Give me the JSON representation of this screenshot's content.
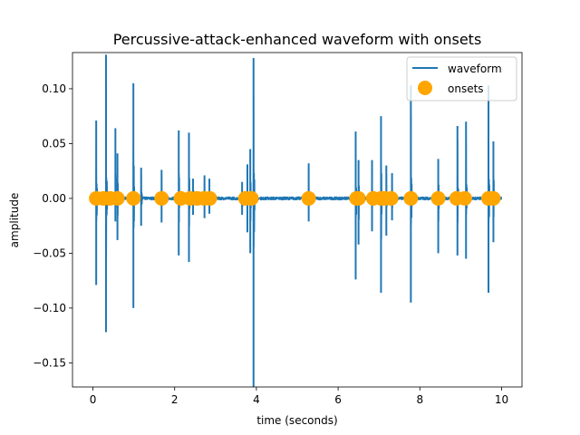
{
  "chart_data": {
    "type": "line",
    "title": "Percussive-attack-enhanced waveform with onsets",
    "xlabel": "time (seconds)",
    "ylabel": "amplitude",
    "xlim": [
      -0.5,
      10.5
    ],
    "ylim": [
      -0.172,
      0.133
    ],
    "xticks": [
      0,
      2,
      4,
      6,
      8,
      10
    ],
    "yticks": [
      -0.15,
      -0.1,
      -0.05,
      0.0,
      0.05,
      0.1
    ],
    "ytick_labels": [
      "−0.15",
      "−0.10",
      "−0.05",
      "0.00",
      "0.05",
      "0.10"
    ],
    "grid": false,
    "legend_position": "top-right",
    "waveform": {
      "name": "waveform",
      "color": "#1f77b4",
      "duration": 10.0,
      "transients": [
        {
          "t": 0.08,
          "pos": 0.071,
          "neg": -0.079
        },
        {
          "t": 0.32,
          "pos": 0.131,
          "neg": -0.122
        },
        {
          "t": 0.55,
          "pos": 0.064,
          "neg": -0.021
        },
        {
          "t": 0.6,
          "pos": 0.041,
          "neg": -0.038
        },
        {
          "t": 0.99,
          "pos": 0.105,
          "neg": -0.1
        },
        {
          "t": 1.18,
          "pos": 0.028,
          "neg": -0.025
        },
        {
          "t": 1.68,
          "pos": 0.026,
          "neg": -0.022
        },
        {
          "t": 2.1,
          "pos": 0.062,
          "neg": -0.052
        },
        {
          "t": 2.35,
          "pos": 0.06,
          "neg": -0.058
        },
        {
          "t": 2.45,
          "pos": 0.018,
          "neg": -0.015
        },
        {
          "t": 2.73,
          "pos": 0.021,
          "neg": -0.018
        },
        {
          "t": 2.85,
          "pos": 0.018,
          "neg": -0.014
        },
        {
          "t": 3.65,
          "pos": 0.015,
          "neg": -0.015
        },
        {
          "t": 3.78,
          "pos": 0.031,
          "neg": -0.031
        },
        {
          "t": 3.85,
          "pos": 0.045,
          "neg": -0.05
        },
        {
          "t": 3.93,
          "pos": 0.128,
          "neg": -0.172
        },
        {
          "t": 5.28,
          "pos": 0.032,
          "neg": -0.021
        },
        {
          "t": 6.43,
          "pos": 0.061,
          "neg": -0.074
        },
        {
          "t": 6.5,
          "pos": 0.035,
          "neg": -0.042
        },
        {
          "t": 6.83,
          "pos": 0.035,
          "neg": -0.03
        },
        {
          "t": 7.05,
          "pos": 0.075,
          "neg": -0.086
        },
        {
          "t": 7.18,
          "pos": 0.03,
          "neg": -0.034
        },
        {
          "t": 7.32,
          "pos": 0.023,
          "neg": -0.02
        },
        {
          "t": 7.78,
          "pos": 0.103,
          "neg": -0.095
        },
        {
          "t": 8.45,
          "pos": 0.036,
          "neg": -0.05
        },
        {
          "t": 8.92,
          "pos": 0.066,
          "neg": -0.052
        },
        {
          "t": 9.13,
          "pos": 0.07,
          "neg": -0.055
        },
        {
          "t": 9.68,
          "pos": 0.103,
          "neg": -0.086
        },
        {
          "t": 9.8,
          "pos": 0.052,
          "neg": -0.04
        }
      ]
    },
    "onsets": {
      "name": "onsets",
      "color": "#ffa500",
      "y": 0.0,
      "x": [
        0.08,
        0.26,
        0.42,
        0.6,
        0.99,
        1.68,
        2.15,
        2.38,
        2.55,
        2.72,
        2.86,
        3.73,
        3.88,
        5.28,
        6.45,
        6.5,
        6.86,
        7.05,
        7.14,
        7.3,
        7.78,
        8.45,
        8.9,
        9.1,
        9.68,
        9.8
      ]
    }
  }
}
